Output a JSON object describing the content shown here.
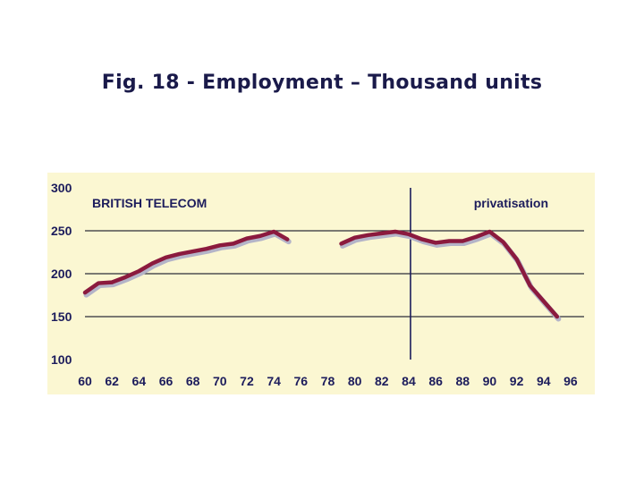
{
  "title": "Fig. 18 - Employment – Thousand units",
  "chart_data": {
    "type": "line",
    "title": "Fig. 18 - Employment – Thousand units",
    "xlabel": "",
    "ylabel": "",
    "xlim": [
      60,
      97
    ],
    "ylim": [
      100,
      300
    ],
    "x_ticks": [
      "60",
      "62",
      "64",
      "66",
      "68",
      "70",
      "72",
      "74",
      "76",
      "78",
      "80",
      "82",
      "84",
      "86",
      "88",
      "90",
      "92",
      "94",
      "96"
    ],
    "y_ticks": [
      "100",
      "150",
      "200",
      "250",
      "300"
    ],
    "grid": true,
    "annotations": [
      {
        "text": "BRITISH TELECOM",
        "position": "top-left"
      },
      {
        "text": "privatisation",
        "position": "top-right"
      }
    ],
    "marker_line_x": 84,
    "line_color": "#8b1a3e",
    "segments": [
      {
        "x": [
          60,
          61,
          62,
          63,
          64,
          65,
          66,
          67,
          68,
          69,
          70,
          71,
          72,
          73,
          74,
          75
        ],
        "y": [
          178,
          189,
          190,
          196,
          203,
          212,
          219,
          223,
          226,
          229,
          233,
          235,
          241,
          244,
          249,
          240
        ]
      },
      {
        "x": [
          79,
          80,
          81,
          82,
          83,
          84,
          85,
          86,
          87,
          88,
          89,
          90,
          91,
          92,
          93,
          94,
          95
        ],
        "y": [
          235,
          242,
          245,
          247,
          249,
          246,
          240,
          236,
          238,
          238,
          243,
          249,
          237,
          217,
          186,
          168,
          150
        ]
      }
    ]
  }
}
